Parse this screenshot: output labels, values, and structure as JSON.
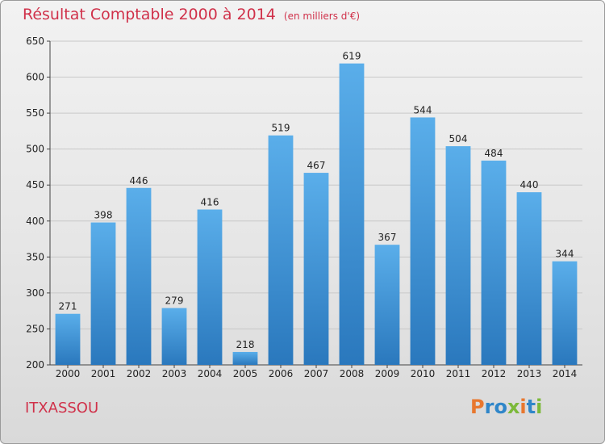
{
  "header": {
    "title": "Résultat Comptable 2000 à 2014",
    "unit": "(en milliers d'€)"
  },
  "footer": {
    "commune": "ITXASSOU",
    "logo_text": "Proxiti"
  },
  "colors": {
    "title": "#d0314a",
    "bar_top": "#5aaeea",
    "bar_bottom": "#2a78bd",
    "logo_letters": [
      "#e8772e",
      "#2f86c9",
      "#2f86c9",
      "#7cb93a",
      "#e8772e",
      "#2f86c9",
      "#7cb93a"
    ]
  },
  "chart_data": {
    "type": "bar",
    "title": "Résultat Comptable 2000 à 2014",
    "subtitle": "(en milliers d'€)",
    "categories": [
      "2000",
      "2001",
      "2002",
      "2003",
      "2004",
      "2005",
      "2006",
      "2007",
      "2008",
      "2009",
      "2010",
      "2011",
      "2012",
      "2013",
      "2014"
    ],
    "values": [
      271,
      398,
      446,
      279,
      416,
      218,
      519,
      467,
      619,
      367,
      544,
      504,
      484,
      440,
      344
    ],
    "ylim": [
      200,
      650
    ],
    "yticks": [
      200,
      250,
      300,
      350,
      400,
      450,
      500,
      550,
      600,
      650
    ],
    "grid": true,
    "data_labels": true
  }
}
